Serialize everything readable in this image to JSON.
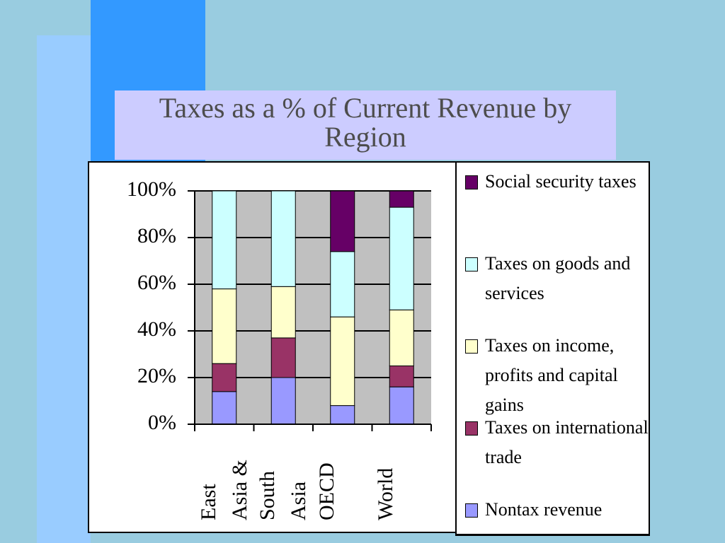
{
  "chart_data": {
    "type": "stacked_bar",
    "title": "Taxes as a % of Current Revenue by Region",
    "categories": [
      "East Asia &",
      "South Asia",
      "OECD",
      "World"
    ],
    "series": [
      {
        "name": "Nontax revenue",
        "color": "#9999ff",
        "values": [
          14,
          20,
          8,
          16
        ]
      },
      {
        "name": "Taxes on international trade",
        "color": "#993366",
        "values": [
          12,
          17,
          0,
          9
        ]
      },
      {
        "name": "Taxes on income, profits and capital gains",
        "color": "#ffffcc",
        "values": [
          32,
          22,
          38,
          24
        ]
      },
      {
        "name": "Taxes on goods and services",
        "color": "#ccffff",
        "values": [
          42,
          41,
          28,
          44
        ]
      },
      {
        "name": "Social security taxes",
        "color": "#660066",
        "values": [
          0,
          0,
          26,
          7
        ]
      }
    ],
    "ylim": [
      0,
      100
    ],
    "yticks": [
      {
        "value": 0,
        "label": "0%"
      },
      {
        "value": 20,
        "label": "20%"
      },
      {
        "value": 40,
        "label": "40%"
      },
      {
        "value": 60,
        "label": "60%"
      },
      {
        "value": 80,
        "label": "80%"
      },
      {
        "value": 100,
        "label": "100%"
      }
    ],
    "grid": true
  }
}
